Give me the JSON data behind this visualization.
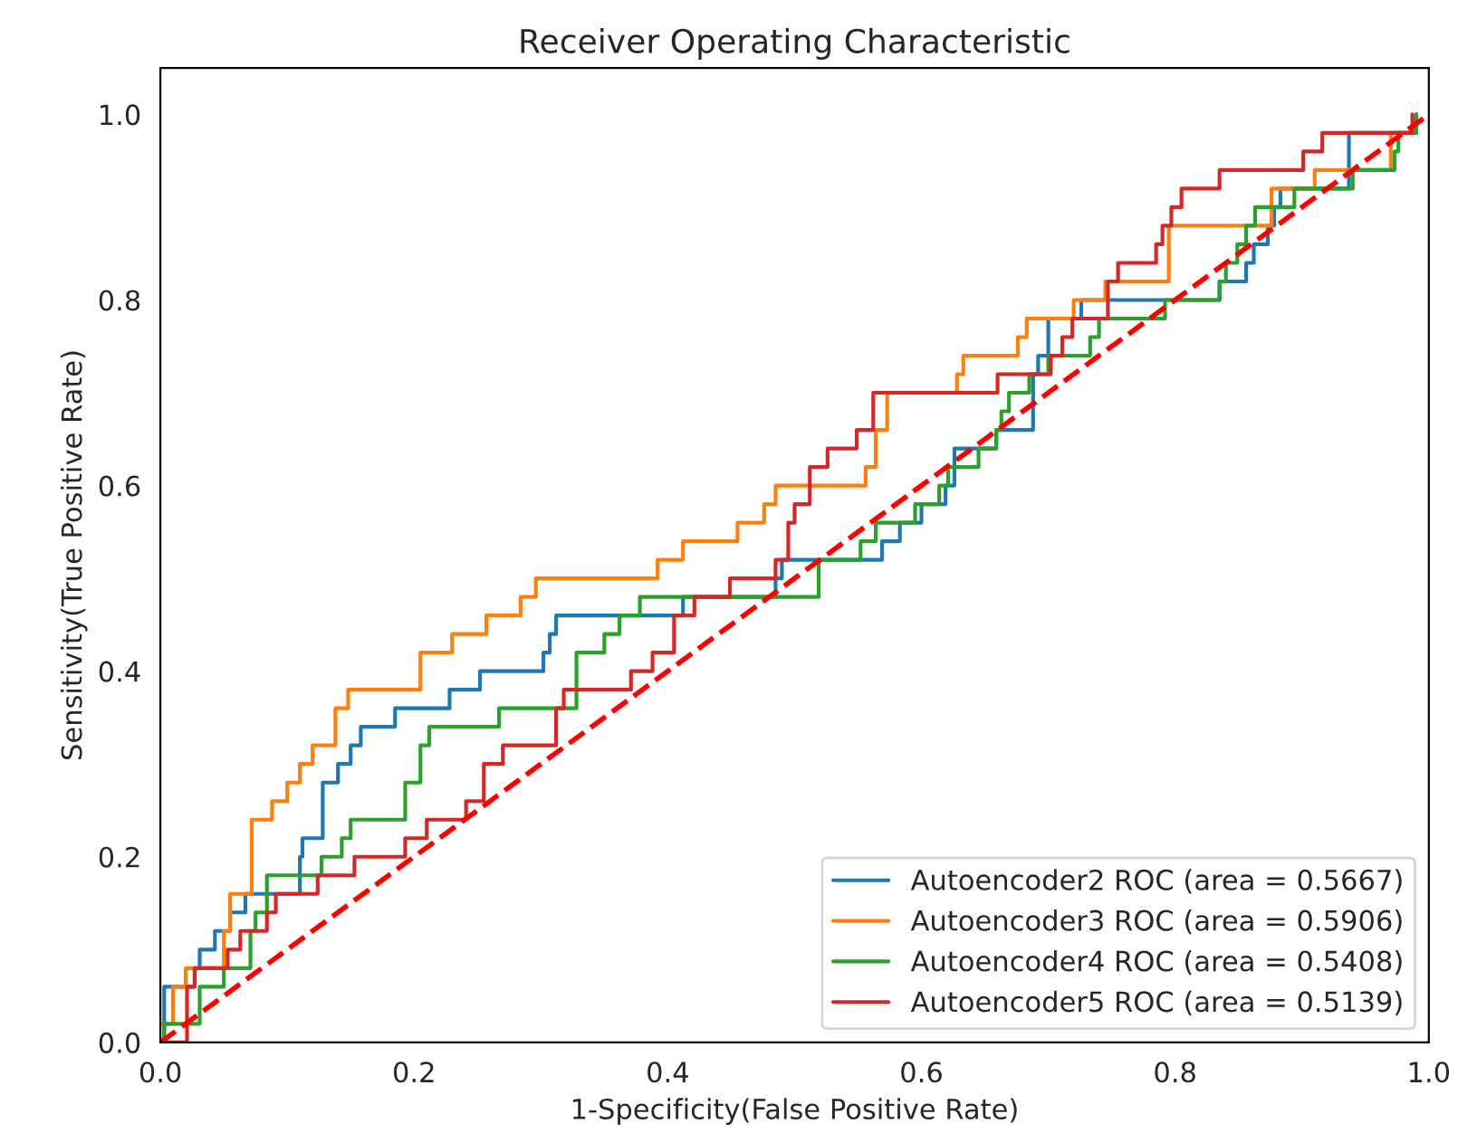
{
  "chart_data": {
    "type": "line",
    "title": "Receiver Operating Characteristic",
    "xlabel": "1-Specificity(False Positive Rate)",
    "ylabel": "Sensitivity(True Positive Rate)",
    "xlim": [
      0,
      1
    ],
    "ylim": [
      0,
      1.05
    ],
    "xticks": [
      {
        "value": 0,
        "label": "0.0"
      },
      0.2,
      0.4,
      0.6,
      0.8,
      {
        "value": 1,
        "label": "1.0"
      }
    ],
    "yticks": [
      {
        "value": 0,
        "label": "0.0"
      },
      0.2,
      0.4,
      0.6,
      0.8,
      {
        "value": 1,
        "label": "1.0"
      }
    ],
    "grid": false,
    "legend": "bottom right",
    "series": [
      {
        "name": "Autoencoder2 ROC (area = 0.5667)",
        "type": "step",
        "color": "#1f77b4",
        "x": [
          0,
          0.003,
          0.027,
          0.031,
          0.043,
          0.055,
          0.067,
          0.11,
          0.112,
          0.128,
          0.14,
          0.15,
          0.158,
          0.185,
          0.228,
          0.252,
          0.302,
          0.307,
          0.312,
          0.412,
          0.485,
          0.49,
          0.569,
          0.583,
          0.6,
          0.619,
          0.626,
          0.659,
          0.688,
          0.692,
          0.7,
          0.726,
          0.835,
          0.856,
          0.862,
          0.873,
          0.878,
          0.883,
          0.937,
          0.99
        ],
        "values": [
          0,
          0.06,
          0.08,
          0.1,
          0.12,
          0.14,
          0.16,
          0.2,
          0.22,
          0.28,
          0.3,
          0.32,
          0.34,
          0.36,
          0.38,
          0.4,
          0.42,
          0.44,
          0.46,
          0.48,
          0.5,
          0.52,
          0.54,
          0.56,
          0.58,
          0.6,
          0.64,
          0.66,
          0.72,
          0.74,
          0.78,
          0.8,
          0.82,
          0.84,
          0.86,
          0.88,
          0.9,
          0.92,
          0.98,
          1.0
        ]
      },
      {
        "name": "Autoencoder3 ROC (area = 0.5906)",
        "type": "step",
        "color": "#ff7f0e",
        "x": [
          0,
          0.01,
          0.02,
          0.05,
          0.055,
          0.072,
          0.088,
          0.1,
          0.11,
          0.12,
          0.138,
          0.148,
          0.205,
          0.23,
          0.257,
          0.284,
          0.296,
          0.392,
          0.412,
          0.455,
          0.476,
          0.485,
          0.556,
          0.564,
          0.573,
          0.628,
          0.633,
          0.676,
          0.683,
          0.72,
          0.745,
          0.795,
          0.876,
          0.91,
          0.97,
          0.99
        ],
        "values": [
          0.02,
          0.06,
          0.08,
          0.12,
          0.16,
          0.24,
          0.26,
          0.28,
          0.3,
          0.32,
          0.36,
          0.38,
          0.42,
          0.44,
          0.46,
          0.48,
          0.5,
          0.52,
          0.54,
          0.56,
          0.58,
          0.6,
          0.62,
          0.66,
          0.7,
          0.72,
          0.74,
          0.76,
          0.78,
          0.8,
          0.82,
          0.88,
          0.92,
          0.94,
          0.98,
          1.0
        ]
      },
      {
        "name": "Autoencoder4 ROC (area = 0.5408)",
        "type": "step",
        "color": "#2ca02c",
        "x": [
          0,
          0.003,
          0.031,
          0.05,
          0.071,
          0.075,
          0.084,
          0.127,
          0.143,
          0.15,
          0.193,
          0.205,
          0.212,
          0.267,
          0.328,
          0.35,
          0.362,
          0.378,
          0.519,
          0.552,
          0.564,
          0.595,
          0.614,
          0.621,
          0.645,
          0.659,
          0.663,
          0.669,
          0.685,
          0.7,
          0.733,
          0.74,
          0.792,
          0.835,
          0.84,
          0.849,
          0.856,
          0.863,
          0.894,
          0.94,
          0.973,
          0.976,
          0.99
        ],
        "values": [
          0,
          0.02,
          0.06,
          0.08,
          0.12,
          0.14,
          0.18,
          0.2,
          0.22,
          0.24,
          0.28,
          0.32,
          0.34,
          0.36,
          0.42,
          0.44,
          0.46,
          0.48,
          0.52,
          0.54,
          0.56,
          0.58,
          0.6,
          0.62,
          0.64,
          0.66,
          0.68,
          0.7,
          0.72,
          0.74,
          0.76,
          0.78,
          0.8,
          0.82,
          0.84,
          0.86,
          0.88,
          0.9,
          0.92,
          0.94,
          0.96,
          0.98,
          1.0
        ]
      },
      {
        "name": "Autoencoder5 ROC (area = 0.5139)",
        "type": "step",
        "color": "#d62728",
        "x": [
          0,
          0.021,
          0.027,
          0.053,
          0.063,
          0.084,
          0.091,
          0.124,
          0.153,
          0.193,
          0.21,
          0.241,
          0.255,
          0.27,
          0.312,
          0.318,
          0.371,
          0.388,
          0.405,
          0.421,
          0.449,
          0.485,
          0.495,
          0.5,
          0.512,
          0.526,
          0.549,
          0.562,
          0.66,
          0.702,
          0.711,
          0.719,
          0.747,
          0.755,
          0.785,
          0.79,
          0.797,
          0.805,
          0.835,
          0.901,
          0.916,
          0.987
        ],
        "values": [
          0,
          0.06,
          0.08,
          0.1,
          0.12,
          0.14,
          0.16,
          0.18,
          0.2,
          0.22,
          0.24,
          0.26,
          0.3,
          0.32,
          0.36,
          0.38,
          0.4,
          0.42,
          0.46,
          0.48,
          0.5,
          0.52,
          0.56,
          0.58,
          0.62,
          0.64,
          0.66,
          0.7,
          0.72,
          0.74,
          0.76,
          0.78,
          0.82,
          0.84,
          0.86,
          0.88,
          0.9,
          0.92,
          0.94,
          0.96,
          0.98,
          1.0
        ]
      },
      {
        "color": "#ff0000",
        "line_style": "dashed",
        "x": [
          0,
          1
        ],
        "values": [
          0,
          1
        ]
      }
    ]
  }
}
